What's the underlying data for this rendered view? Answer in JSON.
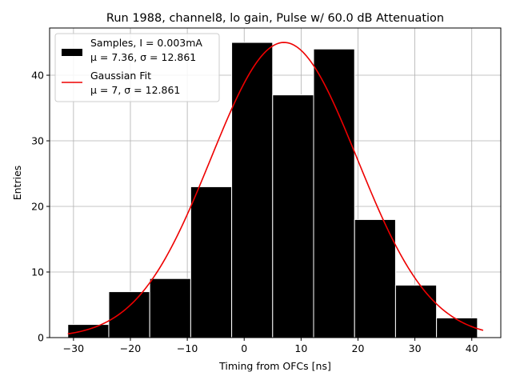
{
  "chart_data": {
    "type": "bar",
    "title": "Run 1988, channel8, lo gain, Pulse w/ 60.0 dB Attenuation",
    "xlabel": "Timing from OFCs [ns]",
    "ylabel": "Entries",
    "xlim": [
      -34.2,
      45.1
    ],
    "ylim": [
      0,
      47.2
    ],
    "xticks": [
      "−30",
      "−20",
      "−10",
      "0",
      "10",
      "20",
      "30",
      "40"
    ],
    "xtick_values": [
      -30,
      -20,
      -10,
      0,
      10,
      20,
      30,
      40
    ],
    "yticks": [
      "0",
      "10",
      "20",
      "30",
      "40"
    ],
    "ytick_values": [
      0,
      10,
      20,
      30,
      40
    ],
    "grid": true,
    "legend_position": "top-left",
    "histogram": {
      "bin_edges": [
        -31,
        -23.8,
        -16.6,
        -9.4,
        -2.2,
        5.0,
        12.2,
        19.4,
        26.6,
        33.8,
        41.0
      ],
      "counts": [
        2,
        7,
        9,
        23,
        45,
        37,
        44,
        18,
        8,
        3
      ],
      "color": "#000000",
      "edgecolor": "#ffffff"
    },
    "fit": {
      "type": "gaussian",
      "mu": 7,
      "sigma": 12.861,
      "peak": 45,
      "x_range": [
        -31,
        42
      ],
      "color": "#ee0000"
    },
    "legend": [
      {
        "line1": "Samples, I = 0.003mA",
        "line2": "μ = 7.36, σ = 12.861"
      },
      {
        "line1": "Gaussian Fit",
        "line2": "μ = 7, σ = 12.861"
      }
    ]
  }
}
